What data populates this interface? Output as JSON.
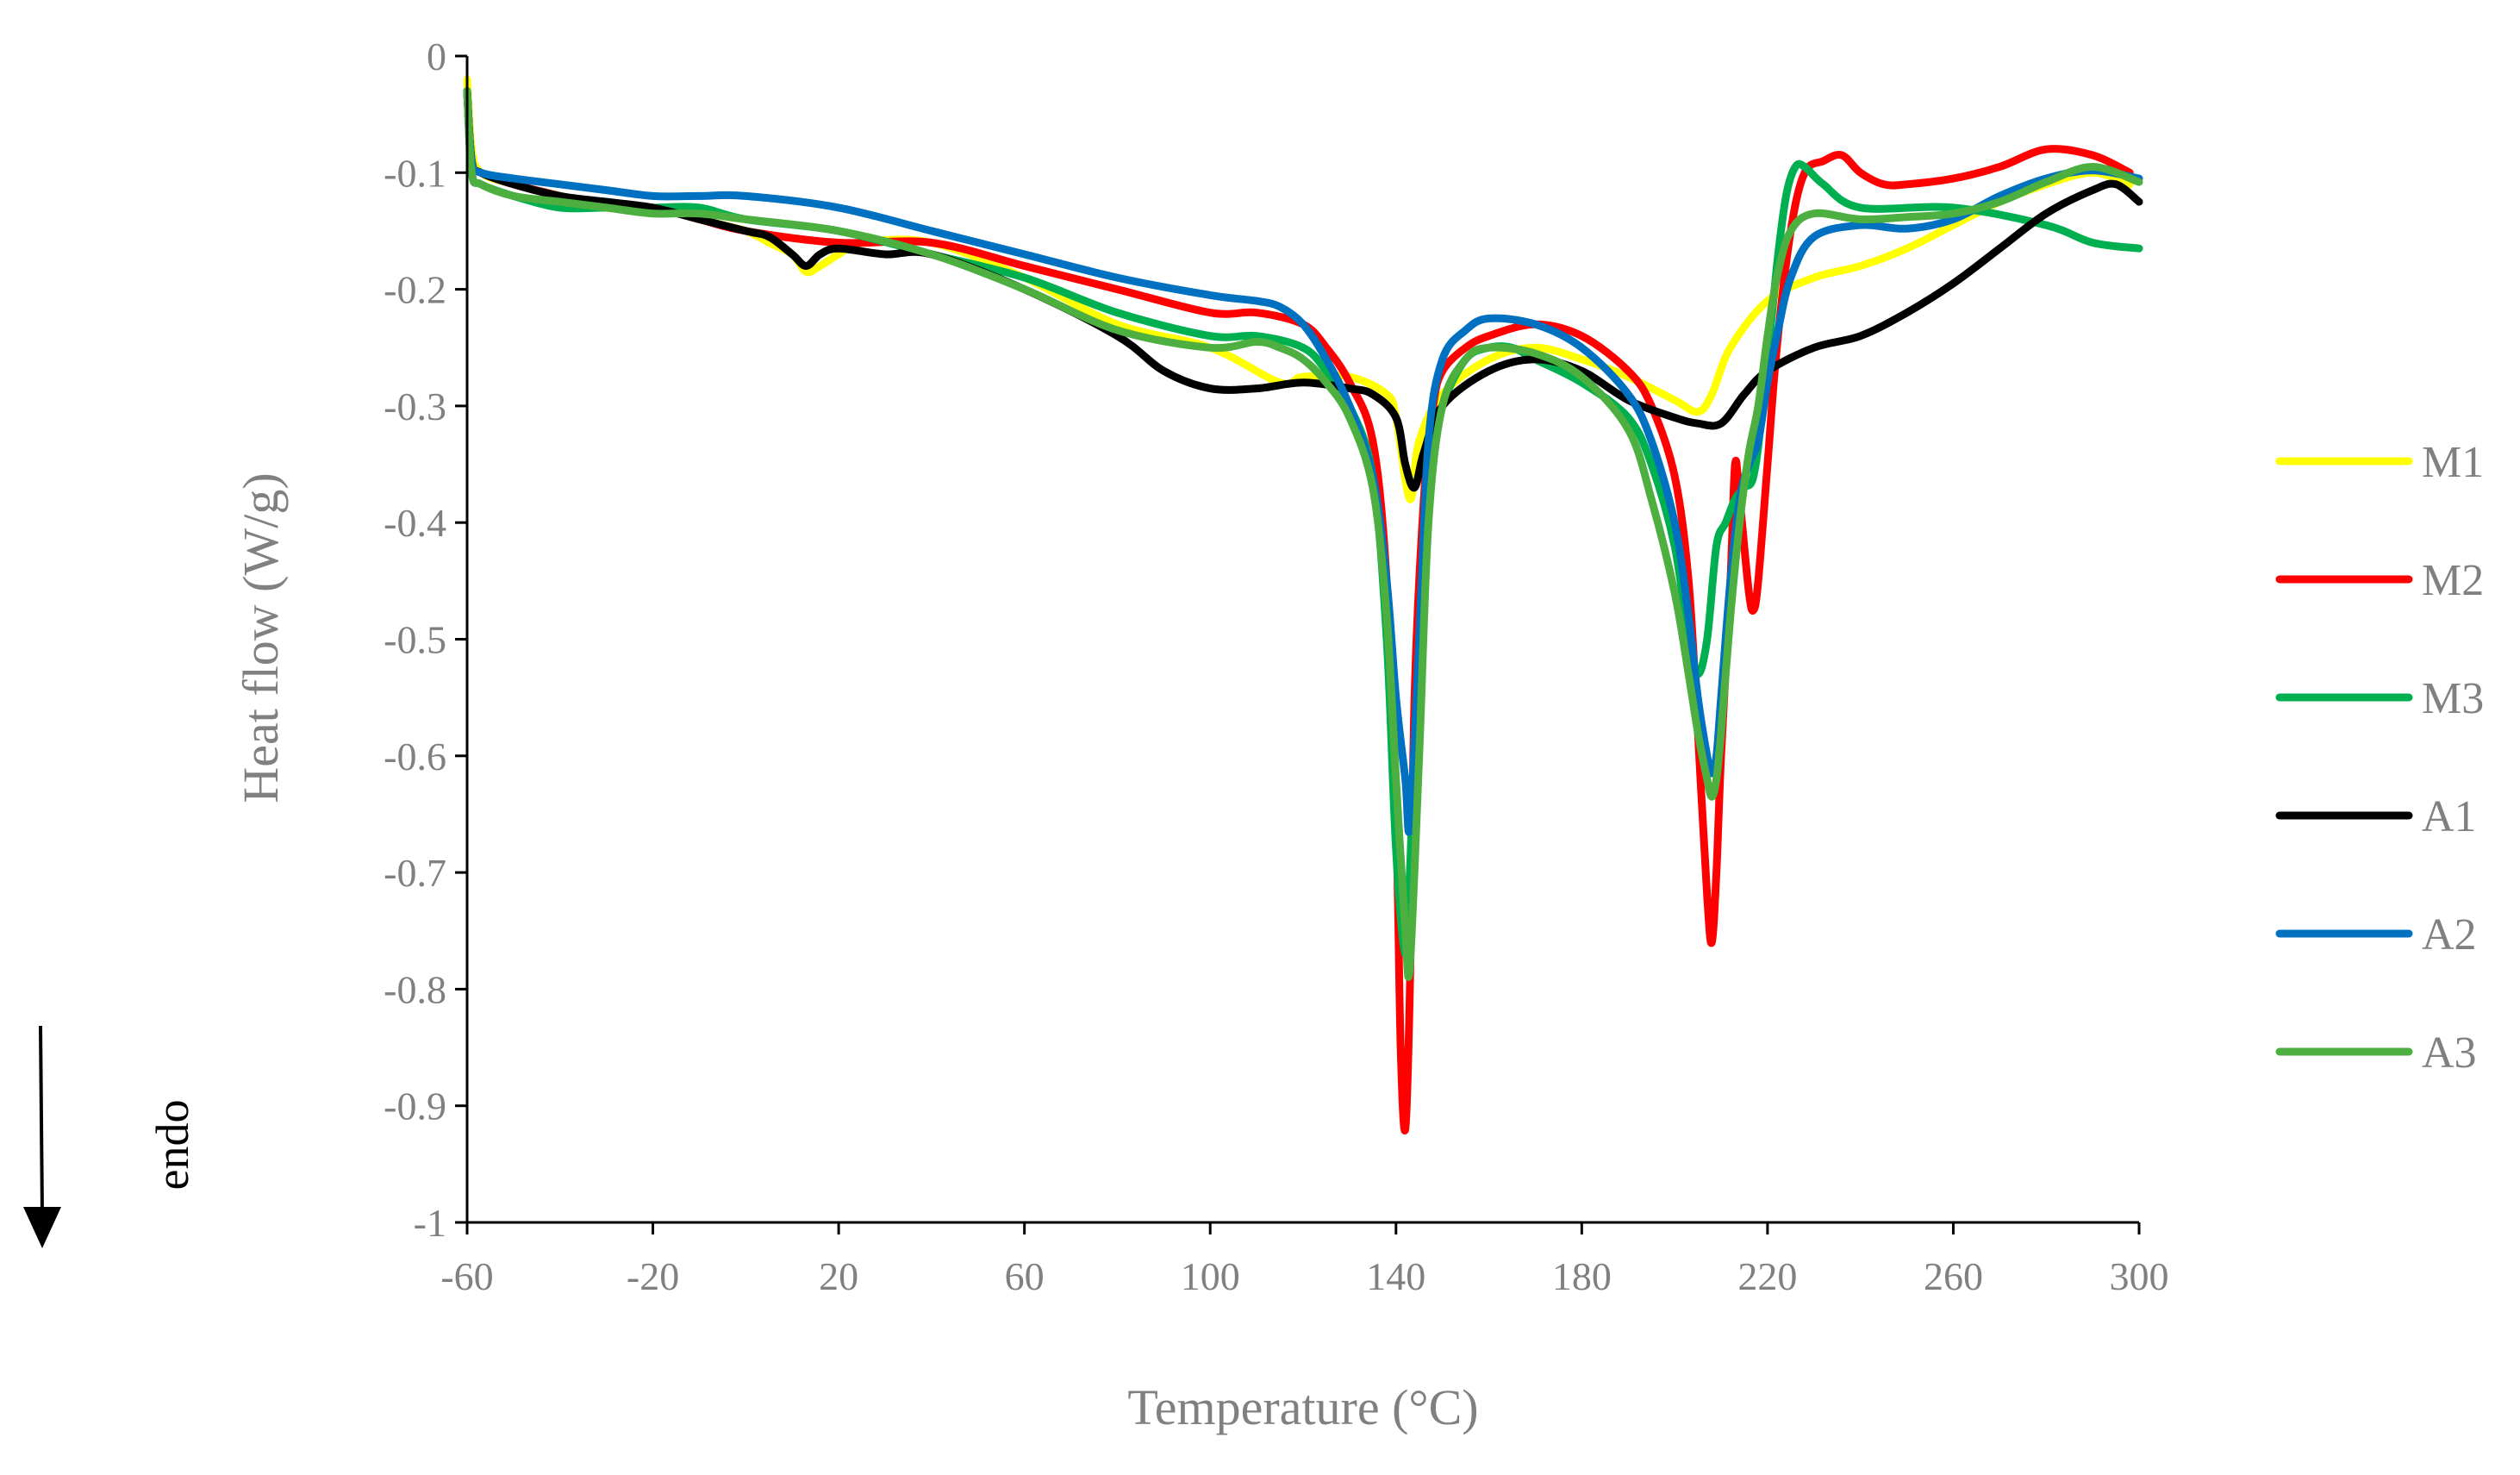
{
  "chart_data": {
    "type": "line",
    "title": "",
    "xlabel": "Temperature (°C)",
    "ylabel": "Heat flow (W/g)",
    "xlim": [
      -60,
      300
    ],
    "ylim": [
      -1,
      0
    ],
    "xticks": [
      -60,
      -20,
      20,
      60,
      100,
      140,
      180,
      220,
      260,
      300
    ],
    "yticks": [
      0,
      -0.1,
      -0.2,
      -0.3,
      -0.4,
      -0.5,
      -0.6,
      -0.7,
      -0.8,
      -0.9,
      -1
    ],
    "xtick_labels": [
      "-60",
      "-20",
      "20",
      "60",
      "100",
      "140",
      "180",
      "220",
      "260",
      "300"
    ],
    "ytick_labels": [
      "0",
      "-0.1",
      "-0.2",
      "-0.3",
      "-0.4",
      "-0.5",
      "-0.6",
      "-0.7",
      "-0.8",
      "-0.9",
      "-1"
    ],
    "grid": false,
    "legend_position": "right",
    "annotation": "endo",
    "series": [
      {
        "name": "M1",
        "color": "#FFFF00",
        "x": [
          -60,
          -59,
          -57,
          -50,
          -40,
          -30,
          -20,
          -10,
          0,
          5,
          10,
          13,
          16,
          20,
          25,
          40,
          60,
          80,
          100,
          115,
          120,
          130,
          138,
          140,
          143,
          145,
          150,
          160,
          170,
          180,
          190,
          200,
          205,
          208,
          212,
          220,
          230,
          240,
          250,
          260,
          270,
          280,
          290,
          298
        ],
        "y": [
          -0.02,
          -0.08,
          -0.1,
          -0.11,
          -0.12,
          -0.13,
          -0.13,
          -0.14,
          -0.15,
          -0.16,
          -0.17,
          -0.185,
          -0.18,
          -0.17,
          -0.16,
          -0.16,
          -0.19,
          -0.23,
          -0.25,
          -0.28,
          -0.275,
          -0.275,
          -0.29,
          -0.31,
          -0.38,
          -0.33,
          -0.29,
          -0.26,
          -0.25,
          -0.26,
          -0.275,
          -0.295,
          -0.305,
          -0.29,
          -0.25,
          -0.21,
          -0.19,
          -0.18,
          -0.165,
          -0.145,
          -0.125,
          -0.11,
          -0.1,
          -0.11
        ]
      },
      {
        "name": "M2",
        "color": "#FF0000",
        "x": [
          -60,
          -59,
          -57,
          -50,
          -40,
          -30,
          -20,
          -10,
          0,
          20,
          40,
          60,
          80,
          100,
          110,
          120,
          125,
          130,
          135,
          138,
          140,
          141,
          142,
          143,
          144,
          146,
          148,
          150,
          155,
          160,
          170,
          180,
          190,
          195,
          200,
          203,
          205,
          207,
          208,
          209,
          210,
          212,
          213,
          214,
          216,
          217,
          218,
          220,
          222,
          225,
          228,
          232,
          236,
          240,
          245,
          250,
          260,
          270,
          280,
          290,
          298
        ],
        "y": [
          -0.03,
          -0.09,
          -0.1,
          -0.11,
          -0.12,
          -0.13,
          -0.13,
          -0.14,
          -0.15,
          -0.16,
          -0.16,
          -0.18,
          -0.2,
          -0.22,
          -0.22,
          -0.23,
          -0.25,
          -0.28,
          -0.33,
          -0.45,
          -0.65,
          -0.85,
          -0.92,
          -0.8,
          -0.55,
          -0.38,
          -0.3,
          -0.27,
          -0.25,
          -0.24,
          -0.23,
          -0.24,
          -0.27,
          -0.3,
          -0.36,
          -0.45,
          -0.58,
          -0.72,
          -0.76,
          -0.7,
          -0.6,
          -0.45,
          -0.35,
          -0.38,
          -0.46,
          -0.475,
          -0.45,
          -0.35,
          -0.25,
          -0.15,
          -0.1,
          -0.09,
          -0.085,
          -0.1,
          -0.11,
          -0.11,
          -0.105,
          -0.095,
          -0.08,
          -0.085,
          -0.1
        ]
      },
      {
        "name": "M3",
        "color": "#00B050",
        "x": [
          -60,
          -59,
          -57,
          -50,
          -40,
          -30,
          -20,
          -10,
          0,
          20,
          40,
          60,
          80,
          100,
          110,
          120,
          125,
          130,
          135,
          138,
          140,
          142,
          143,
          145,
          147,
          150,
          155,
          160,
          165,
          170,
          180,
          190,
          195,
          200,
          203,
          205,
          207,
          209,
          211,
          213,
          215,
          217,
          219,
          222,
          224,
          226,
          228,
          232,
          240,
          260,
          280,
          290,
          300
        ],
        "y": [
          -0.03,
          -0.1,
          -0.11,
          -0.12,
          -0.13,
          -0.13,
          -0.13,
          -0.13,
          -0.14,
          -0.15,
          -0.17,
          -0.19,
          -0.22,
          -0.24,
          -0.24,
          -0.25,
          -0.27,
          -0.3,
          -0.36,
          -0.5,
          -0.68,
          -0.77,
          -0.7,
          -0.5,
          -0.36,
          -0.3,
          -0.26,
          -0.25,
          -0.25,
          -0.26,
          -0.28,
          -0.31,
          -0.35,
          -0.42,
          -0.5,
          -0.53,
          -0.5,
          -0.42,
          -0.4,
          -0.38,
          -0.37,
          -0.36,
          -0.3,
          -0.18,
          -0.12,
          -0.095,
          -0.095,
          -0.11,
          -0.13,
          -0.13,
          -0.145,
          -0.16,
          -0.165
        ]
      },
      {
        "name": "A1",
        "color": "#000000",
        "x": [
          -60,
          -59,
          -57,
          -50,
          -40,
          -30,
          -20,
          -10,
          0,
          5,
          10,
          13,
          16,
          20,
          30,
          40,
          60,
          80,
          90,
          100,
          110,
          120,
          130,
          135,
          140,
          142,
          144,
          146,
          150,
          160,
          170,
          180,
          190,
          200,
          205,
          210,
          215,
          220,
          230,
          240,
          250,
          260,
          270,
          280,
          290,
          295,
          300
        ],
        "y": [
          -0.03,
          -0.09,
          -0.1,
          -0.11,
          -0.12,
          -0.125,
          -0.13,
          -0.14,
          -0.15,
          -0.155,
          -0.17,
          -0.18,
          -0.17,
          -0.165,
          -0.17,
          -0.17,
          -0.2,
          -0.24,
          -0.27,
          -0.285,
          -0.285,
          -0.28,
          -0.285,
          -0.29,
          -0.31,
          -0.35,
          -0.37,
          -0.34,
          -0.3,
          -0.27,
          -0.26,
          -0.27,
          -0.295,
          -0.31,
          -0.315,
          -0.315,
          -0.29,
          -0.27,
          -0.25,
          -0.24,
          -0.22,
          -0.195,
          -0.165,
          -0.135,
          -0.115,
          -0.11,
          -0.125
        ]
      },
      {
        "name": "A2",
        "color": "#0070C0",
        "x": [
          -60,
          -59,
          -57,
          -50,
          -40,
          -30,
          -20,
          -10,
          0,
          20,
          40,
          60,
          80,
          100,
          110,
          115,
          120,
          125,
          130,
          135,
          138,
          140,
          142,
          143,
          145,
          147,
          150,
          155,
          160,
          170,
          180,
          190,
          195,
          200,
          203,
          205,
          207,
          208,
          209,
          210,
          212,
          214,
          216,
          218,
          220,
          222,
          225,
          230,
          240,
          250,
          260,
          270,
          280,
          290,
          300
        ],
        "y": [
          -0.03,
          -0.09,
          -0.1,
          -0.105,
          -0.11,
          -0.115,
          -0.12,
          -0.12,
          -0.12,
          -0.13,
          -0.15,
          -0.17,
          -0.19,
          -0.205,
          -0.21,
          -0.215,
          -0.23,
          -0.26,
          -0.3,
          -0.36,
          -0.45,
          -0.55,
          -0.62,
          -0.66,
          -0.5,
          -0.33,
          -0.26,
          -0.235,
          -0.225,
          -0.23,
          -0.25,
          -0.29,
          -0.33,
          -0.4,
          -0.48,
          -0.55,
          -0.6,
          -0.615,
          -0.6,
          -0.55,
          -0.45,
          -0.38,
          -0.35,
          -0.33,
          -0.28,
          -0.24,
          -0.19,
          -0.155,
          -0.145,
          -0.148,
          -0.14,
          -0.12,
          -0.105,
          -0.098,
          -0.105
        ]
      },
      {
        "name": "A3",
        "color": "#4CAF40",
        "x": [
          -60,
          -59,
          -57,
          -50,
          -40,
          -30,
          -20,
          -10,
          0,
          20,
          40,
          60,
          80,
          100,
          110,
          115,
          120,
          125,
          130,
          135,
          138,
          140,
          142,
          143,
          145,
          147,
          150,
          155,
          160,
          170,
          180,
          190,
          195,
          200,
          203,
          205,
          207,
          208,
          209,
          210,
          212,
          214,
          216,
          218,
          220,
          222,
          225,
          230,
          240,
          250,
          260,
          270,
          280,
          290,
          300
        ],
        "y": [
          -0.03,
          -0.1,
          -0.11,
          -0.12,
          -0.125,
          -0.13,
          -0.135,
          -0.135,
          -0.14,
          -0.15,
          -0.17,
          -0.2,
          -0.235,
          -0.25,
          -0.245,
          -0.25,
          -0.26,
          -0.28,
          -0.31,
          -0.37,
          -0.48,
          -0.62,
          -0.75,
          -0.78,
          -0.6,
          -0.4,
          -0.3,
          -0.26,
          -0.25,
          -0.255,
          -0.275,
          -0.32,
          -0.38,
          -0.46,
          -0.53,
          -0.58,
          -0.62,
          -0.635,
          -0.62,
          -0.58,
          -0.48,
          -0.4,
          -0.34,
          -0.3,
          -0.24,
          -0.19,
          -0.15,
          -0.135,
          -0.14,
          -0.138,
          -0.135,
          -0.125,
          -0.108,
          -0.095,
          -0.108
        ]
      }
    ]
  }
}
